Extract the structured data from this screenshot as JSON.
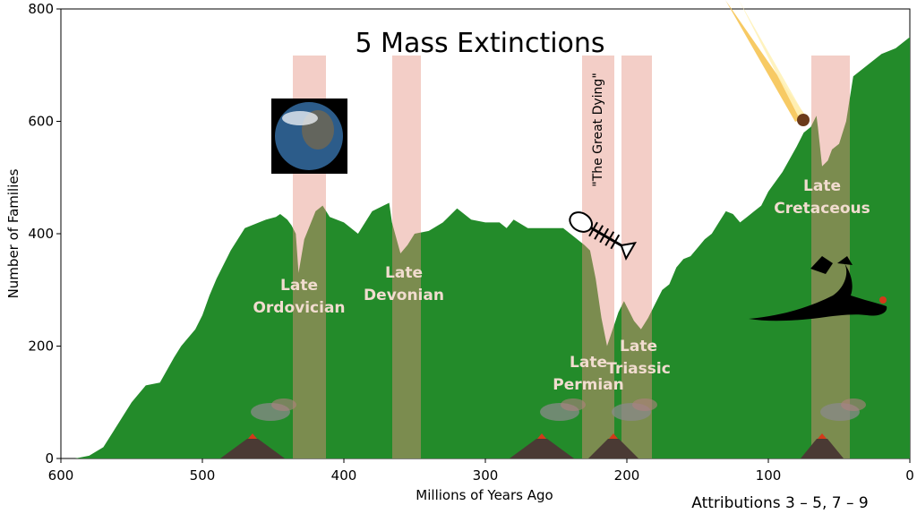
{
  "chart_data": {
    "type": "area",
    "title": "5 Mass Extinctions",
    "xlabel": "Millions of Years Ago",
    "ylabel": "Number of Families",
    "xlim": [
      600,
      0
    ],
    "ylim": [
      0,
      800
    ],
    "x_ticks": [
      "600",
      "500",
      "400",
      "300",
      "200",
      "100",
      "0"
    ],
    "y_ticks": [
      "0",
      "200",
      "400",
      "600",
      "800"
    ],
    "x_reversed": true,
    "grid": false,
    "colors": {
      "area": "#238b2a",
      "band": "#f2c9c1",
      "band_overlap": "#5a7a2e",
      "label": "#f1dccf"
    },
    "series": [
      {
        "x": [
          600,
          590,
          580,
          570,
          560,
          550,
          540,
          530,
          520,
          515,
          505,
          500,
          495,
          490,
          480,
          470,
          460,
          455,
          448,
          445,
          440,
          437,
          434,
          432,
          428,
          420,
          415,
          410,
          400,
          390,
          380,
          372,
          368,
          366,
          360,
          355,
          350,
          340,
          330,
          320,
          310,
          300,
          290,
          285,
          280,
          270,
          260,
          255,
          250,
          245,
          240,
          230,
          226,
          222,
          218,
          214,
          210,
          206,
          202,
          200,
          198,
          195,
          190,
          185,
          180,
          175,
          170,
          165,
          160,
          155,
          150,
          145,
          140,
          135,
          130,
          125,
          120,
          115,
          110,
          105,
          100,
          90,
          80,
          75,
          70,
          66,
          65,
          62,
          58,
          55,
          50,
          45,
          40,
          35,
          30,
          25,
          20,
          10,
          0
        ],
        "y": [
          0,
          0,
          5,
          20,
          60,
          100,
          130,
          135,
          180,
          200,
          230,
          255,
          290,
          320,
          370,
          410,
          420,
          425,
          430,
          435,
          425,
          415,
          400,
          330,
          390,
          440,
          450,
          430,
          420,
          400,
          440,
          450,
          455,
          420,
          365,
          380,
          400,
          405,
          420,
          445,
          425,
          420,
          420,
          410,
          425,
          410,
          410,
          410,
          410,
          410,
          400,
          380,
          370,
          320,
          250,
          200,
          230,
          260,
          280,
          270,
          260,
          245,
          230,
          250,
          275,
          300,
          310,
          340,
          355,
          360,
          375,
          390,
          400,
          420,
          440,
          435,
          420,
          430,
          440,
          450,
          475,
          510,
          555,
          580,
          590,
          610,
          590,
          520,
          530,
          550,
          560,
          600,
          680,
          690,
          700,
          710,
          720,
          730,
          750
        ]
      }
    ],
    "extinction_bands": [
      {
        "name": "Late Ordovician",
        "x_start": 445,
        "x_end": 440
      },
      {
        "name": "Late Devonian",
        "x_start": 372,
        "x_end": 359
      },
      {
        "name": "Late Permian",
        "x_start": 252,
        "x_end": 252
      },
      {
        "name": "Late Triassic",
        "x_start": 201,
        "x_end": 201
      },
      {
        "name": "Late Cretaceous",
        "x_start": 66,
        "x_end": 66
      }
    ],
    "labels": [
      {
        "lines": [
          "Late",
          "Ordovician"
        ]
      },
      {
        "lines": [
          "Late",
          "Devonian"
        ]
      },
      {
        "lines": [
          "Late",
          "Permian"
        ]
      },
      {
        "lines": [
          "Late",
          "Triassic"
        ]
      },
      {
        "lines": [
          "Late",
          "Cretaceous"
        ]
      }
    ],
    "annotations": {
      "great_dying": "\"The Great Dying\""
    }
  },
  "attribution": "Attributions 3 – 5, 7 – 9"
}
